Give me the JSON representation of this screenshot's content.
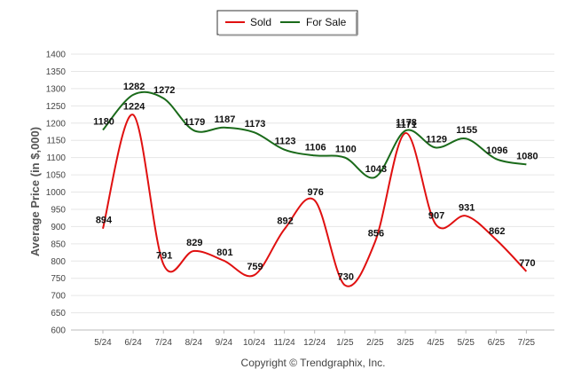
{
  "chart_data": {
    "type": "line",
    "categories": [
      "5/24",
      "6/24",
      "7/24",
      "8/24",
      "9/24",
      "10/24",
      "11/24",
      "12/24",
      "1/25",
      "2/25",
      "3/25",
      "4/25",
      "5/25",
      "6/25",
      "7/25"
    ],
    "series": [
      {
        "name": "Sold",
        "color": "#e01010",
        "values": [
          894,
          1224,
          791,
          829,
          801,
          759,
          892,
          976,
          730,
          856,
          1171,
          907,
          931,
          862,
          770
        ]
      },
      {
        "name": "For Sale",
        "color": "#1a6a1a",
        "values": [
          1180,
          1282,
          1272,
          1179,
          1187,
          1173,
          1123,
          1106,
          1100,
          1043,
          1178,
          1129,
          1155,
          1096,
          1080
        ]
      }
    ],
    "ylabel": "Average Price (in $,000)",
    "xlabel": "",
    "ylim": [
      600,
      1400
    ],
    "ytick_step": 50,
    "grid": true,
    "legend_position": "top-center",
    "credit": "Copyright © Trendgraphix, Inc."
  }
}
